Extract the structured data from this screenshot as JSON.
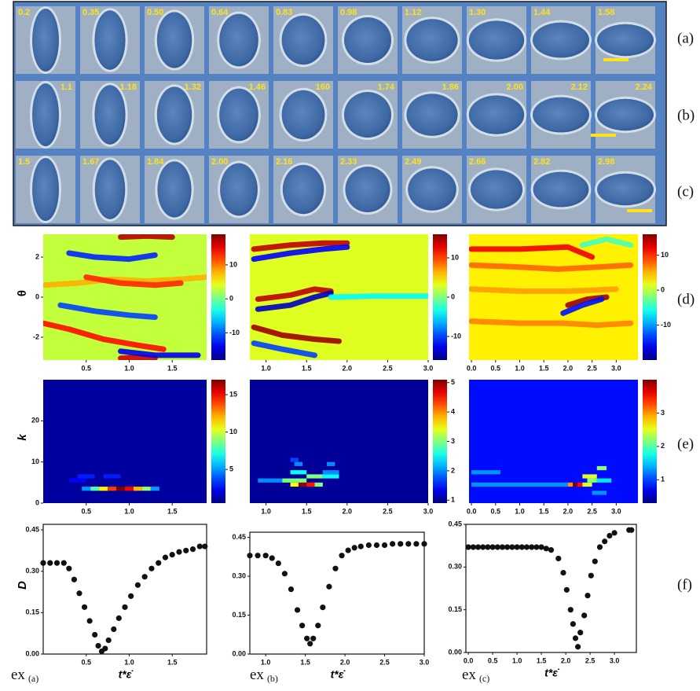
{
  "images": {
    "row_labels": [
      "(a)",
      "(b)",
      "(c)"
    ],
    "rows": [
      [
        "0.2",
        "0.35",
        "0.50",
        "0.64",
        "0.83",
        "0.98",
        "1.12",
        "1.30",
        "1.44",
        "1.58"
      ],
      [
        "1.1",
        "1.18",
        "1.32",
        "1.46",
        "160",
        "1.74",
        "1.86",
        "2.00",
        "2.12",
        "2.24"
      ],
      [
        "1.5",
        "1.67",
        "1.84",
        "2.00",
        "2.16",
        "2.33",
        "2.49",
        "2.66",
        "2.82",
        "2.98"
      ]
    ]
  },
  "row_labels": [
    "(d)",
    "(e)",
    "(f)"
  ],
  "example_labels": [
    {
      "text": "ex",
      "sub": "(a)"
    },
    {
      "text": "ex",
      "sub": "(b)"
    },
    {
      "text": "ex",
      "sub": "(c)"
    }
  ],
  "chart_data": [
    {
      "type": "heatmap",
      "ylabel": "θ",
      "xlim": [
        0,
        1.9
      ],
      "xticks": [
        0.5,
        {
          "value": 1,
          "label": "1.0"
        },
        1.5
      ],
      "ylim": [
        -3.14,
        3.14
      ],
      "yticks": [
        2,
        0,
        -2
      ],
      "clim": [
        -18,
        19
      ],
      "cticks": [
        10,
        0,
        -10
      ],
      "background": 3,
      "streaks": [
        {
          "x": [
            0,
            0.4,
            0.8,
            1.2,
            1.6,
            1.9
          ],
          "theta": [
            0.6,
            0.7,
            0.9,
            0.8,
            0.9,
            1.0
          ],
          "value": 8
        },
        {
          "x": [
            0.5,
            0.9,
            1.3,
            1.6
          ],
          "theta": [
            1.0,
            0.7,
            0.6,
            0.7
          ],
          "value": 13
        },
        {
          "x": [
            0.3,
            0.6,
            1.0,
            1.3
          ],
          "theta": [
            2.2,
            2.0,
            1.9,
            2.1
          ],
          "value": -12
        },
        {
          "x": [
            0,
            0.3,
            0.7,
            1.1,
            1.4
          ],
          "theta": [
            -1.3,
            -1.6,
            -2.1,
            -2.4,
            -2.6
          ],
          "value": 14
        },
        {
          "x": [
            0.2,
            0.6,
            1.0,
            1.3
          ],
          "theta": [
            -0.4,
            -0.7,
            -0.9,
            -1.0
          ],
          "value": -11
        },
        {
          "x": [
            0.9,
            1.2,
            1.5
          ],
          "theta": [
            3.0,
            3.05,
            3.0
          ],
          "value": 17
        },
        {
          "x": [
            0.9,
            1.15,
            1.3
          ],
          "theta": [
            -3.05,
            -3.0,
            -3.05
          ],
          "value": 16
        },
        {
          "x": [
            0.9,
            1.3,
            1.8
          ],
          "theta": [
            -2.7,
            -2.9,
            -2.9
          ],
          "value": -14
        }
      ]
    },
    {
      "type": "heatmap",
      "xlim": [
        0.8,
        3.0
      ],
      "xticks": [
        {
          "value": 1,
          "label": "1.0"
        },
        1.5,
        {
          "value": 2,
          "label": "2.0"
        },
        2.5,
        {
          "value": 3,
          "label": "3.0"
        }
      ],
      "ylim": [
        -3.14,
        3.14
      ],
      "clim": [
        -16,
        16
      ],
      "cticks": [
        10,
        0,
        -10
      ],
      "background": 3,
      "streaks": [
        {
          "x": [
            0.85,
            1.3,
            1.7,
            2.0
          ],
          "theta": [
            2.4,
            2.6,
            2.7,
            2.7
          ],
          "value": 14
        },
        {
          "x": [
            0.85,
            1.3,
            1.7,
            2.0
          ],
          "theta": [
            1.9,
            2.2,
            2.4,
            2.5
          ],
          "value": -12
        },
        {
          "x": [
            0.9,
            1.3,
            1.6,
            1.8
          ],
          "theta": [
            -0.1,
            0.1,
            0.4,
            0.3
          ],
          "value": 14
        },
        {
          "x": [
            0.9,
            1.3,
            1.6,
            1.8
          ],
          "theta": [
            -0.6,
            -0.4,
            0.0,
            0.2
          ],
          "value": -14
        },
        {
          "x": [
            0.85,
            1.2,
            1.6,
            1.9
          ],
          "theta": [
            -1.5,
            -1.9,
            -2.1,
            -2.2
          ],
          "value": 15
        },
        {
          "x": [
            0.85,
            1.2,
            1.6
          ],
          "theta": [
            -2.3,
            -2.6,
            -2.9
          ],
          "value": -10
        },
        {
          "x": [
            1.8,
            2.3,
            3.0
          ],
          "theta": [
            0.0,
            0.05,
            0.05
          ],
          "value": -4
        }
      ]
    },
    {
      "type": "heatmap",
      "xlim": [
        -0.05,
        3.45
      ],
      "xticks": [
        {
          "value": 0,
          "label": "0.0"
        },
        0.5,
        {
          "value": 1,
          "label": "1.0"
        },
        1.5,
        {
          "value": 2,
          "label": "2.0"
        },
        2.5,
        {
          "value": 3,
          "label": "3.0"
        }
      ],
      "ylim": [
        -3.14,
        3.14
      ],
      "clim": [
        -20,
        16
      ],
      "cticks": [
        10,
        0,
        -10
      ],
      "background": 3,
      "streaks": [
        {
          "x": [
            0,
            1.0,
            2.0,
            2.5
          ],
          "theta": [
            2.4,
            2.4,
            2.5,
            2.0
          ],
          "value": 12
        },
        {
          "x": [
            0,
            1.0,
            1.8,
            2.6,
            3.3
          ],
          "theta": [
            1.6,
            1.5,
            1.4,
            1.5,
            1.6
          ],
          "value": 8
        },
        {
          "x": [
            2.0,
            2.4,
            2.8
          ],
          "theta": [
            -0.4,
            -0.1,
            0.0
          ],
          "value": 15
        },
        {
          "x": [
            1.9,
            2.3,
            2.7
          ],
          "theta": [
            -0.8,
            -0.4,
            -0.1
          ],
          "value": -15
        },
        {
          "x": [
            0,
            1.0,
            1.9,
            2.6,
            3.3
          ],
          "theta": [
            -1.2,
            -1.3,
            -1.3,
            -1.4,
            -1.3
          ],
          "value": 7
        },
        {
          "x": [
            0,
            1,
            2,
            3
          ],
          "theta": [
            0.4,
            0.3,
            0.3,
            0.4
          ],
          "value": 6
        },
        {
          "x": [
            2.3,
            2.8,
            3.3
          ],
          "theta": [
            2.6,
            2.9,
            2.6
          ],
          "value": -4
        }
      ]
    },
    {
      "type": "heatmap",
      "ylabel": "k",
      "xlim": [
        0,
        1.9
      ],
      "xticks": [
        0.5,
        {
          "value": 1,
          "label": "1.0"
        },
        1.5
      ],
      "ylim": [
        0,
        30
      ],
      "yticks": [
        20,
        10,
        0
      ],
      "clim": [
        0.5,
        17
      ],
      "cticks": [
        15,
        10,
        5
      ],
      "background": 1,
      "cells": [
        [
          0.45,
          0.55,
          3,
          4,
          5
        ],
        [
          0.55,
          0.65,
          3,
          4,
          8
        ],
        [
          0.65,
          0.75,
          3,
          4,
          11
        ],
        [
          0.75,
          0.85,
          3,
          4,
          14
        ],
        [
          0.85,
          0.95,
          3,
          4,
          17
        ],
        [
          0.95,
          1.05,
          3,
          4,
          15
        ],
        [
          1.05,
          1.15,
          3,
          4,
          12
        ],
        [
          1.15,
          1.25,
          3,
          4,
          9
        ],
        [
          1.25,
          1.35,
          3,
          4,
          5
        ],
        [
          0.4,
          0.6,
          6,
          7,
          3
        ],
        [
          0.7,
          0.9,
          6,
          7,
          3
        ],
        [
          0.3,
          0.5,
          5,
          6,
          2.5
        ]
      ]
    },
    {
      "type": "heatmap",
      "xlim": [
        0.8,
        3.0
      ],
      "xticks": [
        {
          "value": 1,
          "label": "1.0"
        },
        1.5,
        {
          "value": 2,
          "label": "2.0"
        },
        2.5,
        {
          "value": 3,
          "label": "3.0"
        }
      ],
      "ylim": [
        0,
        30
      ],
      "clim": [
        0.9,
        5.1
      ],
      "cticks": [
        5,
        4,
        3,
        2,
        1
      ],
      "background": 1,
      "cells": [
        [
          1.3,
          1.4,
          4,
          5,
          3.5
        ],
        [
          1.4,
          1.5,
          4,
          5,
          5
        ],
        [
          1.5,
          1.6,
          4,
          5,
          4.5
        ],
        [
          1.6,
          1.7,
          4,
          5,
          3
        ],
        [
          0.9,
          1.2,
          5,
          6,
          2
        ],
        [
          1.2,
          1.5,
          5,
          6,
          3
        ],
        [
          1.5,
          1.7,
          6,
          7,
          3
        ],
        [
          1.7,
          1.9,
          6,
          7,
          2.5
        ],
        [
          1.3,
          1.5,
          7,
          8,
          2.5
        ],
        [
          1.7,
          1.9,
          7,
          8,
          2
        ],
        [
          1.35,
          1.45,
          9,
          10,
          2
        ],
        [
          1.75,
          1.85,
          9,
          10,
          2
        ],
        [
          1.3,
          1.4,
          10,
          11,
          1.7
        ]
      ]
    },
    {
      "type": "heatmap",
      "xlim": [
        -0.05,
        3.45
      ],
      "xticks": [
        {
          "value": 0,
          "label": "0.0"
        },
        0.5,
        {
          "value": 1,
          "label": "1.0"
        },
        1.5,
        {
          "value": 2,
          "label": "2.0"
        },
        2.5,
        {
          "value": 3,
          "label": "3.0"
        }
      ],
      "ylim": [
        0,
        30
      ],
      "clim": [
        0.3,
        4.0
      ],
      "cticks": [
        3,
        2,
        1
      ],
      "background": 0.8,
      "cells": [
        [
          0,
          2.0,
          4,
          5,
          1.3
        ],
        [
          2.0,
          2.1,
          4,
          5,
          3
        ],
        [
          2.1,
          2.2,
          4,
          5,
          4
        ],
        [
          2.2,
          2.3,
          4,
          5,
          3.5
        ],
        [
          2.3,
          2.5,
          4,
          5,
          2.5
        ],
        [
          2.4,
          2.6,
          5,
          6,
          2.2
        ],
        [
          2.6,
          2.9,
          5,
          6,
          1.6
        ],
        [
          2.3,
          2.6,
          6,
          7,
          2.5
        ],
        [
          2.6,
          2.8,
          8,
          9,
          2.2
        ],
        [
          2.5,
          2.8,
          2,
          3,
          1.3
        ],
        [
          0,
          0.6,
          7,
          8,
          1.3
        ]
      ]
    },
    {
      "type": "scatter",
      "ylabel": "D",
      "xlabel": "t*ε̇",
      "xlim": [
        0,
        1.9
      ],
      "xticks": [
        0.5,
        {
          "value": 1,
          "label": "1.0"
        },
        1.5
      ],
      "ylim": [
        0,
        0.47
      ],
      "yticks": [
        {
          "value": 0,
          "label": "0.00"
        },
        0.15,
        {
          "value": 0.3,
          "label": "0.30"
        },
        0.45
      ],
      "x": [
        0.0,
        0.08,
        0.16,
        0.24,
        0.3,
        0.36,
        0.42,
        0.48,
        0.54,
        0.6,
        0.64,
        0.68,
        0.72,
        0.76,
        0.82,
        0.88,
        0.95,
        1.02,
        1.1,
        1.18,
        1.26,
        1.34,
        1.42,
        1.5,
        1.58,
        1.66,
        1.74,
        1.82,
        1.88
      ],
      "values": [
        0.33,
        0.33,
        0.33,
        0.33,
        0.31,
        0.27,
        0.22,
        0.17,
        0.12,
        0.07,
        0.03,
        0.01,
        0.02,
        0.05,
        0.09,
        0.13,
        0.17,
        0.21,
        0.25,
        0.28,
        0.31,
        0.33,
        0.35,
        0.36,
        0.37,
        0.375,
        0.38,
        0.39,
        0.39
      ]
    },
    {
      "type": "scatter",
      "xlabel": "t*ε̇",
      "xlim": [
        0.8,
        3.0
      ],
      "xticks": [
        {
          "value": 1,
          "label": "1.0"
        },
        1.5,
        {
          "value": 2,
          "label": "2.0"
        },
        2.5,
        {
          "value": 3,
          "label": "3.0"
        }
      ],
      "ylim": [
        0,
        0.47
      ],
      "yticks": [
        {
          "value": 0,
          "label": "0.00"
        },
        0.15,
        {
          "value": 0.3,
          "label": "0.30"
        },
        0.45
      ],
      "x": [
        0.8,
        0.9,
        1.0,
        1.08,
        1.16,
        1.24,
        1.32,
        1.4,
        1.46,
        1.52,
        1.56,
        1.6,
        1.66,
        1.72,
        1.8,
        1.88,
        1.96,
        2.04,
        2.12,
        2.2,
        2.3,
        2.4,
        2.5,
        2.6,
        2.7,
        2.8,
        2.9,
        3.0
      ],
      "values": [
        0.38,
        0.38,
        0.38,
        0.37,
        0.35,
        0.31,
        0.25,
        0.17,
        0.11,
        0.06,
        0.04,
        0.06,
        0.11,
        0.18,
        0.26,
        0.33,
        0.38,
        0.4,
        0.41,
        0.415,
        0.42,
        0.42,
        0.42,
        0.425,
        0.425,
        0.425,
        0.425,
        0.425
      ]
    },
    {
      "type": "scatter",
      "xlabel": "t*ε̇",
      "xlim": [
        -0.05,
        3.45
      ],
      "xticks": [
        {
          "value": 0,
          "label": "0.0"
        },
        0.5,
        {
          "value": 1,
          "label": "1.0"
        },
        1.5,
        {
          "value": 2,
          "label": "2.0"
        },
        2.5,
        {
          "value": 3,
          "label": "3.0"
        }
      ],
      "ylim": [
        0,
        0.45
      ],
      "yticks": [
        {
          "value": 0,
          "label": "0.00"
        },
        0.15,
        {
          "value": 0.3,
          "label": "0.30"
        },
        0.45
      ],
      "x": [
        0,
        0.1,
        0.2,
        0.3,
        0.4,
        0.5,
        0.6,
        0.7,
        0.8,
        0.9,
        1.0,
        1.1,
        1.2,
        1.3,
        1.4,
        1.5,
        1.6,
        1.7,
        1.85,
        1.95,
        2.02,
        2.1,
        2.15,
        2.2,
        2.25,
        2.3,
        2.38,
        2.45,
        2.52,
        2.6,
        2.7,
        2.8,
        2.9,
        3.0,
        3.3,
        3.35
      ],
      "values": [
        0.37,
        0.37,
        0.37,
        0.37,
        0.37,
        0.37,
        0.37,
        0.37,
        0.37,
        0.37,
        0.37,
        0.37,
        0.37,
        0.37,
        0.37,
        0.37,
        0.365,
        0.36,
        0.33,
        0.28,
        0.22,
        0.15,
        0.1,
        0.05,
        0.02,
        0.07,
        0.13,
        0.2,
        0.27,
        0.32,
        0.37,
        0.39,
        0.41,
        0.42,
        0.43,
        0.43
      ]
    }
  ]
}
